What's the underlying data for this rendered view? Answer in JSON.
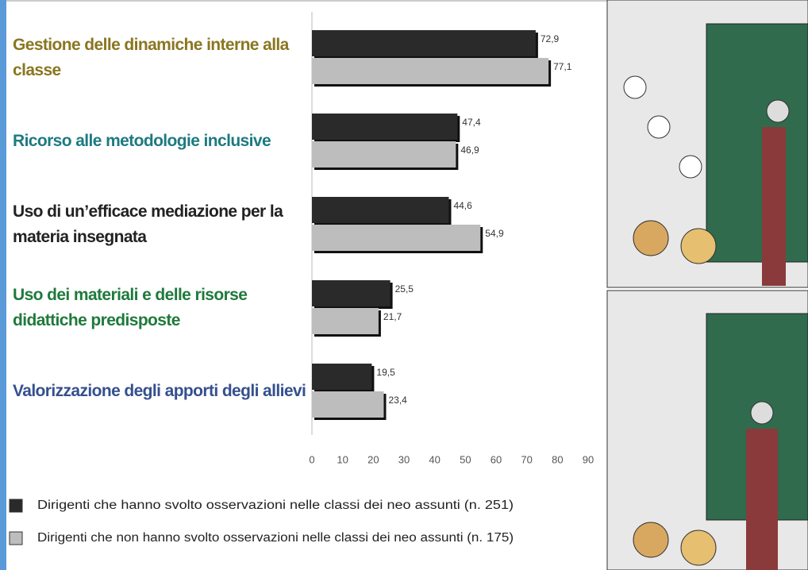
{
  "chart_data": {
    "type": "barh",
    "categories": [
      "Gestione delle dinamiche interne alla classe",
      "Ricorso alle metodologie inclusive",
      "Uso di un’efficace mediazione per la materia insegnata",
      "Uso dei materiali e delle risorse didattiche predisposte",
      "Valorizzazione degli apporti degli allievi"
    ],
    "category_colors": [
      "#8a7620",
      "#1d7a80",
      "#222222",
      "#1f7a3c",
      "#34508e"
    ],
    "series": [
      {
        "name": "Dirigenti  che hanno svolto osservazioni nelle classi dei neo assunti (n. 251)",
        "color": "#2a2a2a",
        "values": [
          72.9,
          47.4,
          44.6,
          25.5,
          19.5
        ],
        "value_labels": [
          "72,9",
          "47,4",
          "44,6",
          "25,5",
          "19,5"
        ]
      },
      {
        "name": "Dirigenti che non hanno svolto osservazioni nelle classi dei neo assunti (n. 175)",
        "color": "#bdbdbd",
        "values": [
          77.1,
          46.9,
          54.9,
          21.7,
          23.4
        ],
        "value_labels": [
          "77,1",
          "46,9",
          "54,9",
          "21,7",
          "23,4"
        ]
      }
    ],
    "xlim": [
      0,
      90
    ],
    "xticks": [
      0,
      10,
      20,
      30,
      40,
      50,
      60,
      70,
      80,
      90
    ]
  }
}
